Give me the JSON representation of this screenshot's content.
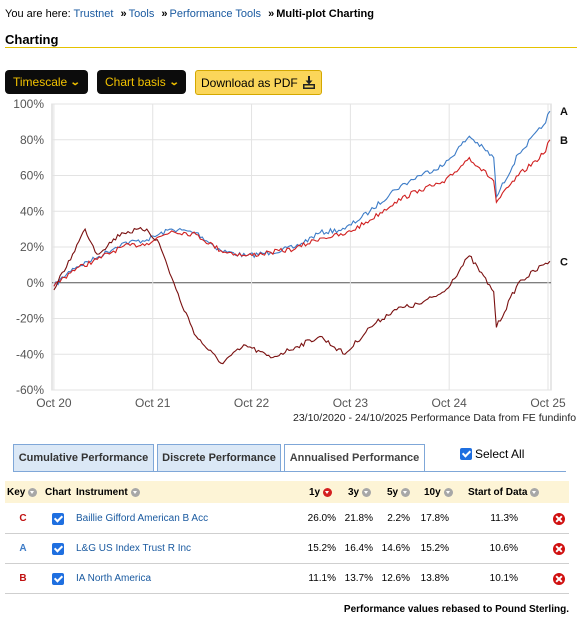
{
  "breadcrumb": {
    "prefix": "You are here:",
    "items": [
      "Trustnet",
      "Tools",
      "Performance Tools"
    ],
    "current": "Multi-plot Charting",
    "separator": "»"
  },
  "section_title": "Charting",
  "toolbar": {
    "timescale_label": "Timescale",
    "chart_basis_label": "Chart basis",
    "pdf_label": "Download as PDF"
  },
  "chart_data": {
    "type": "line",
    "x_ticks": [
      "Oct 20",
      "Oct 21",
      "Oct 22",
      "Oct 23",
      "Oct 24",
      "Oct 25"
    ],
    "y_ticks": [
      "100%",
      "80%",
      "60%",
      "40%",
      "20%",
      "0%",
      "-20%",
      "-40%",
      "-60%"
    ],
    "ylim": [
      -60,
      100
    ],
    "date_range_label": "23/10/2020 - 24/10/2025 Performance Data from FE fundinfo",
    "series": [
      {
        "name": "A",
        "color": "#3d7cc7",
        "x": [
          "2020-10-23",
          "2020-12-31",
          "2021-03-31",
          "2021-06-30",
          "2021-09-30",
          "2021-12-31",
          "2022-03-31",
          "2022-06-30",
          "2022-09-30",
          "2022-12-31",
          "2023-03-31",
          "2023-06-30",
          "2023-09-30",
          "2023-12-31",
          "2024-03-31",
          "2024-06-30",
          "2024-09-30",
          "2024-12-31",
          "2025-03-31",
          "2025-04-10",
          "2025-06-30",
          "2025-09-30",
          "2025-10-24"
        ],
        "values": [
          -2,
          8,
          14,
          22,
          24,
          30,
          28,
          18,
          15,
          17,
          20,
          28,
          30,
          40,
          52,
          60,
          66,
          82,
          70,
          48,
          72,
          88,
          96
        ]
      },
      {
        "name": "B",
        "color": "#d02020",
        "x": [
          "2020-10-23",
          "2020-12-31",
          "2021-03-31",
          "2021-06-30",
          "2021-09-30",
          "2021-12-31",
          "2022-03-31",
          "2022-06-30",
          "2022-09-30",
          "2022-12-31",
          "2023-03-31",
          "2023-06-30",
          "2023-09-30",
          "2023-12-31",
          "2024-03-31",
          "2024-06-30",
          "2024-09-30",
          "2024-12-31",
          "2025-03-31",
          "2025-04-10",
          "2025-06-30",
          "2025-09-30",
          "2025-10-24"
        ],
        "values": [
          -2,
          7,
          13,
          20,
          22,
          29,
          27,
          18,
          15,
          17,
          19,
          25,
          27,
          35,
          45,
          52,
          56,
          70,
          57,
          45,
          60,
          72,
          80
        ]
      },
      {
        "name": "C",
        "color": "#7a1010",
        "x": [
          "2020-10-23",
          "2020-12-31",
          "2021-02-15",
          "2021-03-31",
          "2021-06-30",
          "2021-09-30",
          "2021-11-15",
          "2022-01-31",
          "2022-03-31",
          "2022-06-30",
          "2022-09-30",
          "2022-12-31",
          "2023-03-31",
          "2023-06-30",
          "2023-09-30",
          "2023-12-31",
          "2024-03-31",
          "2024-06-30",
          "2024-09-30",
          "2024-12-31",
          "2025-03-31",
          "2025-04-10",
          "2025-06-30",
          "2025-09-30",
          "2025-10-24"
        ],
        "values": [
          -4,
          16,
          30,
          16,
          28,
          30,
          22,
          -10,
          -30,
          -45,
          -35,
          -42,
          -36,
          -30,
          -40,
          -25,
          -15,
          -12,
          -5,
          15,
          -5,
          -25,
          0,
          10,
          12
        ]
      }
    ]
  },
  "tabs": [
    {
      "label": "Cumulative Performance",
      "active": false
    },
    {
      "label": "Discrete Performance",
      "active": false
    },
    {
      "label": "Annualised Performance",
      "active": true
    }
  ],
  "select_all_label": "Select All",
  "table": {
    "headers": {
      "key": "Key",
      "chart": "Chart",
      "instrument": "Instrument",
      "y1": "1y",
      "y3": "3y",
      "y5": "5y",
      "y10": "10y",
      "start": "Start of Data"
    },
    "rows": [
      {
        "key": "C",
        "key_color": "#c01010",
        "instrument": "Baillie Gifford American B Acc",
        "y1": "26.0%",
        "y3": "21.8%",
        "y5": "2.2%",
        "y10": "17.8%",
        "start": "11.3%"
      },
      {
        "key": "A",
        "key_color": "#3d7cc7",
        "instrument": "L&G US Index Trust R Inc",
        "y1": "15.2%",
        "y3": "16.4%",
        "y5": "14.6%",
        "y10": "15.2%",
        "start": "10.6%"
      },
      {
        "key": "B",
        "key_color": "#c01010",
        "instrument": "IA North America",
        "y1": "11.1%",
        "y3": "13.7%",
        "y5": "12.6%",
        "y10": "13.8%",
        "start": "10.1%"
      }
    ]
  },
  "footer_note": "Performance values rebased to Pound Sterling."
}
